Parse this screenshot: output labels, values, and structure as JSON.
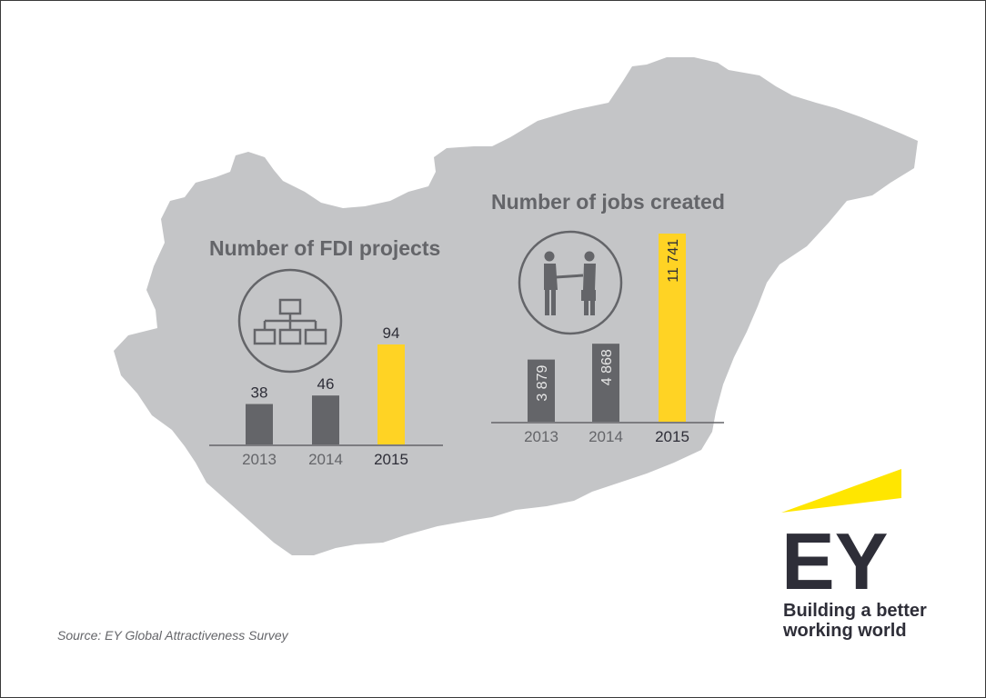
{
  "chart_data": [
    {
      "type": "bar",
      "title": "Number of FDI projects",
      "icon": "org-chart-icon",
      "categories": [
        "2013",
        "2014",
        "2015"
      ],
      "values": [
        38,
        46,
        94
      ],
      "value_labels": [
        "38",
        "46",
        "94"
      ],
      "ylim": [
        0,
        94
      ],
      "highlight_category": "2015",
      "colors": {
        "bar": "#646569",
        "highlight": "#ffd324"
      },
      "grid": false,
      "legend": "none"
    },
    {
      "type": "bar",
      "title": "Number of jobs created",
      "icon": "handshake-icon",
      "categories": [
        "2013",
        "2014",
        "2015"
      ],
      "values": [
        3879,
        4868,
        11741
      ],
      "value_labels": [
        "3 879",
        "4 868",
        "11 741"
      ],
      "ylim": [
        0,
        11741
      ],
      "highlight_category": "2015",
      "colors": {
        "bar": "#646569",
        "highlight": "#ffd324"
      },
      "grid": false,
      "legend": "none"
    }
  ],
  "source": "Source: EY Global Attractiveness Survey",
  "brand": {
    "logo_text": "EY",
    "tagline_line1": "Building a better",
    "tagline_line2": "working world",
    "accent_color": "#ffe600",
    "text_color": "#2e2e38"
  },
  "background": {
    "map_color": "#c4c5c7",
    "text_color": "#646569"
  }
}
